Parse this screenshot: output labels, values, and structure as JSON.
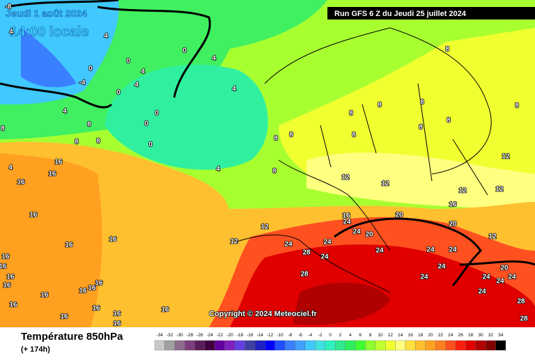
{
  "header": {
    "valid_date": "Jeudi 1 août 2024",
    "local_time": "14:00 locale",
    "run": "Run GFS 6 Z du Jeudi 25 juillet 2024"
  },
  "map": {
    "copyright": "Copyright © 2024 Meteociel.fr",
    "contour_labels": [
      -8,
      4,
      4,
      0,
      -4,
      0,
      0,
      4,
      4,
      4,
      0,
      4,
      0,
      0,
      0,
      4,
      8,
      8,
      8,
      8,
      4,
      4,
      16,
      16,
      16,
      16,
      16,
      16,
      16,
      16,
      16,
      16,
      16,
      16,
      16,
      16,
      16,
      16,
      16,
      16,
      16,
      16,
      12,
      12,
      8,
      8,
      8,
      8,
      8,
      8,
      8,
      8,
      8,
      8,
      8,
      12,
      12,
      12,
      12,
      12,
      16,
      16,
      20,
      20,
      12,
      24,
      20,
      24,
      24,
      24,
      24,
      24,
      28,
      24,
      28,
      24,
      24,
      20,
      24,
      24,
      24,
      24,
      28,
      28,
      24
    ]
  },
  "legend": {
    "title": "Température 850hPa",
    "lead_time": "(+ 174h)",
    "values": [
      -34,
      -32,
      -30,
      -28,
      -26,
      -24,
      -22,
      -20,
      -18,
      -16,
      -14,
      -12,
      -10,
      -8,
      -6,
      -4,
      -2,
      0,
      2,
      4,
      6,
      8,
      10,
      12,
      14,
      16,
      18,
      20,
      22,
      24,
      26,
      28,
      30,
      32,
      34
    ],
    "colors": [
      "#c8c8c8",
      "#a0a0a0",
      "#8c6c8c",
      "#7c3c7c",
      "#5c1c5c",
      "#400040",
      "#6000a0",
      "#8020c0",
      "#6040e0",
      "#4040a0",
      "#2020c0",
      "#0000ff",
      "#2050ff",
      "#3a7fff",
      "#40a0ff",
      "#40c8ff",
      "#40e0e0",
      "#30f0c0",
      "#30e890",
      "#30f060",
      "#40ff30",
      "#90ff30",
      "#c0ff30",
      "#f0ff30",
      "#ffff80",
      "#ffe040",
      "#ffc030",
      "#ffa020",
      "#ff8020",
      "#ff5020",
      "#ff2010",
      "#e00000",
      "#b00000",
      "#800000",
      "#000000"
    ]
  }
}
